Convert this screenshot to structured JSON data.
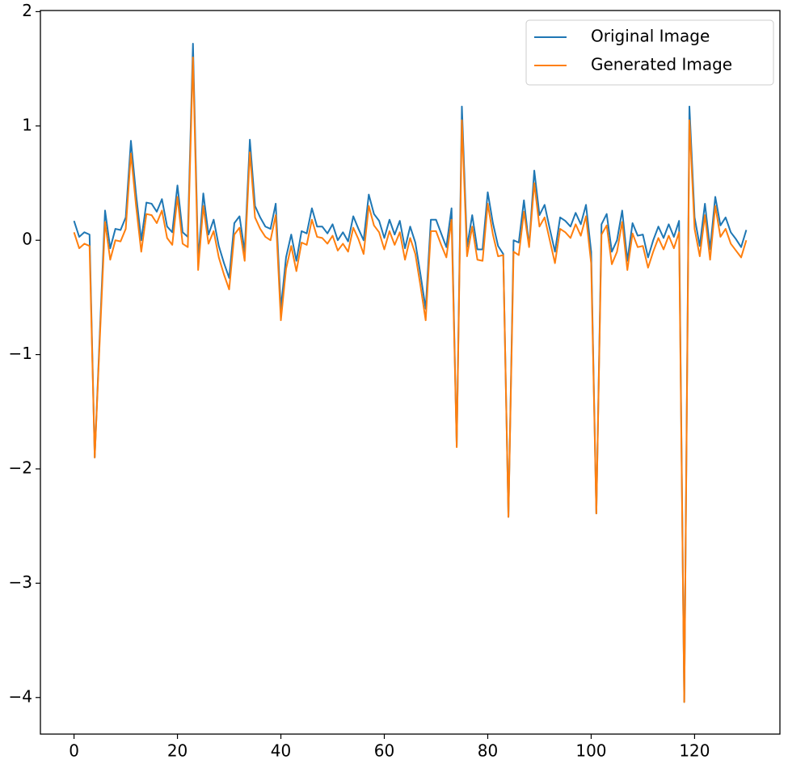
{
  "chart_data": {
    "type": "line",
    "x": [
      0,
      1,
      2,
      3,
      4,
      5,
      6,
      7,
      8,
      9,
      10,
      11,
      12,
      13,
      14,
      15,
      16,
      17,
      18,
      19,
      20,
      21,
      22,
      23,
      24,
      25,
      26,
      27,
      28,
      29,
      30,
      31,
      32,
      33,
      34,
      35,
      36,
      37,
      38,
      39,
      40,
      41,
      42,
      43,
      44,
      45,
      46,
      47,
      48,
      49,
      50,
      51,
      52,
      53,
      54,
      55,
      56,
      57,
      58,
      59,
      60,
      61,
      62,
      63,
      64,
      65,
      66,
      67,
      68,
      69,
      70,
      71,
      72,
      73,
      74,
      75,
      76,
      77,
      78,
      79,
      80,
      81,
      82,
      83,
      84,
      85,
      86,
      87,
      88,
      89,
      90,
      91,
      92,
      93,
      94,
      95,
      96,
      97,
      98,
      99,
      100,
      101,
      102,
      103,
      104,
      105,
      106,
      107,
      108,
      109,
      110,
      111,
      112,
      113,
      114,
      115,
      116,
      117,
      118,
      119,
      120,
      121,
      122,
      123,
      124,
      125,
      126,
      127,
      128,
      129,
      130
    ],
    "series": [
      {
        "name": "Original Image",
        "color": "#1f77b4",
        "values": [
          0.17,
          0.03,
          0.07,
          0.05,
          -1.9,
          -0.8,
          0.26,
          -0.07,
          0.1,
          0.09,
          0.2,
          0.87,
          0.4,
          0.0,
          0.33,
          0.32,
          0.25,
          0.36,
          0.12,
          0.07,
          0.48,
          0.07,
          0.03,
          1.72,
          -0.18,
          0.41,
          0.05,
          0.18,
          -0.05,
          -0.2,
          -0.33,
          0.15,
          0.21,
          -0.1,
          0.88,
          0.3,
          0.2,
          0.12,
          0.1,
          0.32,
          -0.6,
          -0.15,
          0.05,
          -0.18,
          0.08,
          0.06,
          0.28,
          0.12,
          0.12,
          0.06,
          0.14,
          0.0,
          0.07,
          -0.01,
          0.21,
          0.1,
          0.0,
          0.4,
          0.23,
          0.17,
          0.02,
          0.18,
          0.05,
          0.17,
          -0.07,
          0.12,
          -0.02,
          -0.3,
          -0.6,
          0.18,
          0.18,
          0.06,
          -0.06,
          0.28,
          -1.8,
          1.17,
          -0.06,
          0.22,
          -0.08,
          -0.08,
          0.42,
          0.15,
          -0.05,
          -0.12,
          -2.42,
          0.0,
          -0.02,
          0.35,
          -0.05,
          0.61,
          0.22,
          0.31,
          0.1,
          -0.1,
          0.2,
          0.17,
          0.12,
          0.24,
          0.14,
          0.31,
          -0.1,
          -2.39,
          0.14,
          0.23,
          -0.1,
          0.0,
          0.26,
          -0.18,
          0.15,
          0.04,
          0.05,
          -0.15,
          0.0,
          0.12,
          0.02,
          0.14,
          0.03,
          0.17,
          -4.04,
          1.17,
          0.2,
          -0.05,
          0.32,
          -0.08,
          0.38,
          0.13,
          0.2,
          0.07,
          0.01,
          -0.06,
          0.09
        ]
      },
      {
        "name": "Generated Image",
        "color": "#ff7f0e",
        "values": [
          0.07,
          -0.07,
          -0.03,
          -0.05,
          -1.9,
          -0.85,
          0.16,
          -0.17,
          0.0,
          -0.01,
          0.1,
          0.76,
          0.3,
          -0.1,
          0.23,
          0.22,
          0.15,
          0.26,
          0.02,
          -0.04,
          0.38,
          -0.03,
          -0.06,
          1.6,
          -0.26,
          0.3,
          -0.03,
          0.08,
          -0.15,
          -0.3,
          -0.43,
          0.05,
          0.11,
          -0.18,
          0.77,
          0.2,
          0.1,
          0.03,
          0.0,
          0.22,
          -0.7,
          -0.25,
          -0.05,
          -0.27,
          -0.02,
          -0.04,
          0.18,
          0.03,
          0.02,
          -0.03,
          0.04,
          -0.09,
          -0.03,
          -0.1,
          0.11,
          0.01,
          -0.12,
          0.3,
          0.13,
          0.07,
          -0.08,
          0.08,
          -0.04,
          0.07,
          -0.17,
          0.02,
          -0.12,
          -0.4,
          -0.7,
          0.08,
          0.08,
          -0.04,
          -0.15,
          0.18,
          -1.81,
          1.05,
          -0.14,
          0.12,
          -0.17,
          -0.18,
          0.32,
          0.05,
          -0.14,
          -0.13,
          -2.42,
          -0.1,
          -0.13,
          0.25,
          -0.06,
          0.5,
          0.12,
          0.2,
          0.0,
          -0.2,
          0.1,
          0.07,
          0.02,
          0.14,
          0.04,
          0.21,
          -0.2,
          -2.39,
          0.05,
          0.13,
          -0.21,
          -0.1,
          0.16,
          -0.26,
          0.06,
          -0.06,
          -0.05,
          -0.24,
          -0.1,
          0.02,
          -0.08,
          0.04,
          -0.07,
          0.07,
          -4.04,
          1.05,
          0.1,
          -0.14,
          0.22,
          -0.17,
          0.3,
          0.03,
          0.1,
          -0.03,
          -0.09,
          -0.15,
          0.0
        ]
      }
    ],
    "xlim": [
      -6.5,
      136.5
    ],
    "ylim": [
      -4.32,
      2.01
    ],
    "xticks": [
      0,
      20,
      40,
      60,
      80,
      100,
      120
    ],
    "yticks": [
      {
        "value": -4,
        "label": "−4"
      },
      {
        "value": -3,
        "label": "−3"
      },
      {
        "value": -2,
        "label": "−2"
      },
      {
        "value": -1,
        "label": "−1"
      },
      0,
      1,
      2
    ],
    "legend": "upper right"
  }
}
